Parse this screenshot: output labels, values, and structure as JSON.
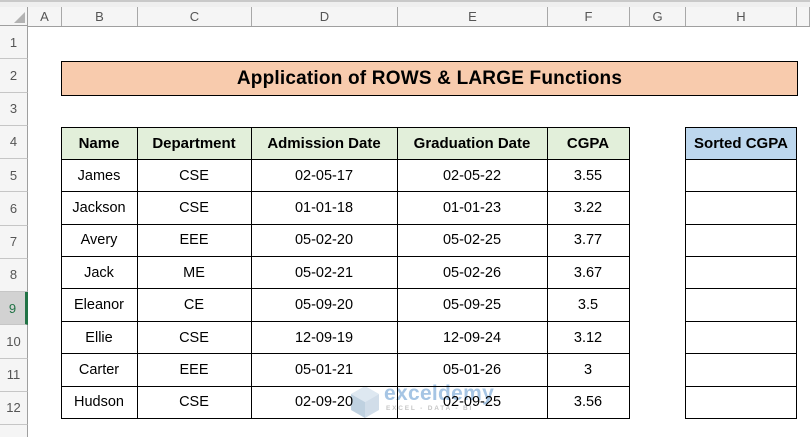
{
  "sheet": {
    "column_letters": [
      "A",
      "B",
      "C",
      "D",
      "E",
      "F",
      "G",
      "H"
    ],
    "row_numbers": [
      "1",
      "2",
      "3",
      "4",
      "5",
      "6",
      "7",
      "8",
      "9",
      "10",
      "11",
      "12"
    ],
    "active_row": "9"
  },
  "banner": {
    "title": "Application of ROWS & LARGE Functions",
    "bg_color": "#F8CBAD"
  },
  "table": {
    "headers": [
      "Name",
      "Department",
      "Admission Date",
      "Graduation Date",
      "CGPA"
    ],
    "header_bg_color": "#E2EFDA",
    "rows": [
      [
        "James",
        "CSE",
        "02-05-17",
        "02-05-22",
        "3.55"
      ],
      [
        "Jackson",
        "CSE",
        "01-01-18",
        "01-01-23",
        "3.22"
      ],
      [
        "Avery",
        "EEE",
        "05-02-20",
        "05-02-25",
        "3.77"
      ],
      [
        "Jack",
        "ME",
        "05-02-21",
        "05-02-26",
        "3.67"
      ],
      [
        "Eleanor",
        "CE",
        "05-09-20",
        "05-09-25",
        "3.5"
      ],
      [
        "Ellie",
        "CSE",
        "12-09-19",
        "12-09-24",
        "3.12"
      ],
      [
        "Carter",
        "EEE",
        "05-01-21",
        "05-01-26",
        "3"
      ],
      [
        "Hudson",
        "CSE",
        "02-09-20",
        "02-09-25",
        "3.56"
      ]
    ]
  },
  "sorted": {
    "header": "Sorted CGPA",
    "header_bg_color": "#BDD7EE",
    "empty_rows": 8
  },
  "watermark": {
    "brand": "exceldemy",
    "tagline": "EXCEL - DATA - BI",
    "brand_color": "#A6C5E4",
    "tagline_color": "#C6C6C6"
  },
  "colors": {
    "active_row_green": "#217346",
    "grid_border": "#000000"
  }
}
